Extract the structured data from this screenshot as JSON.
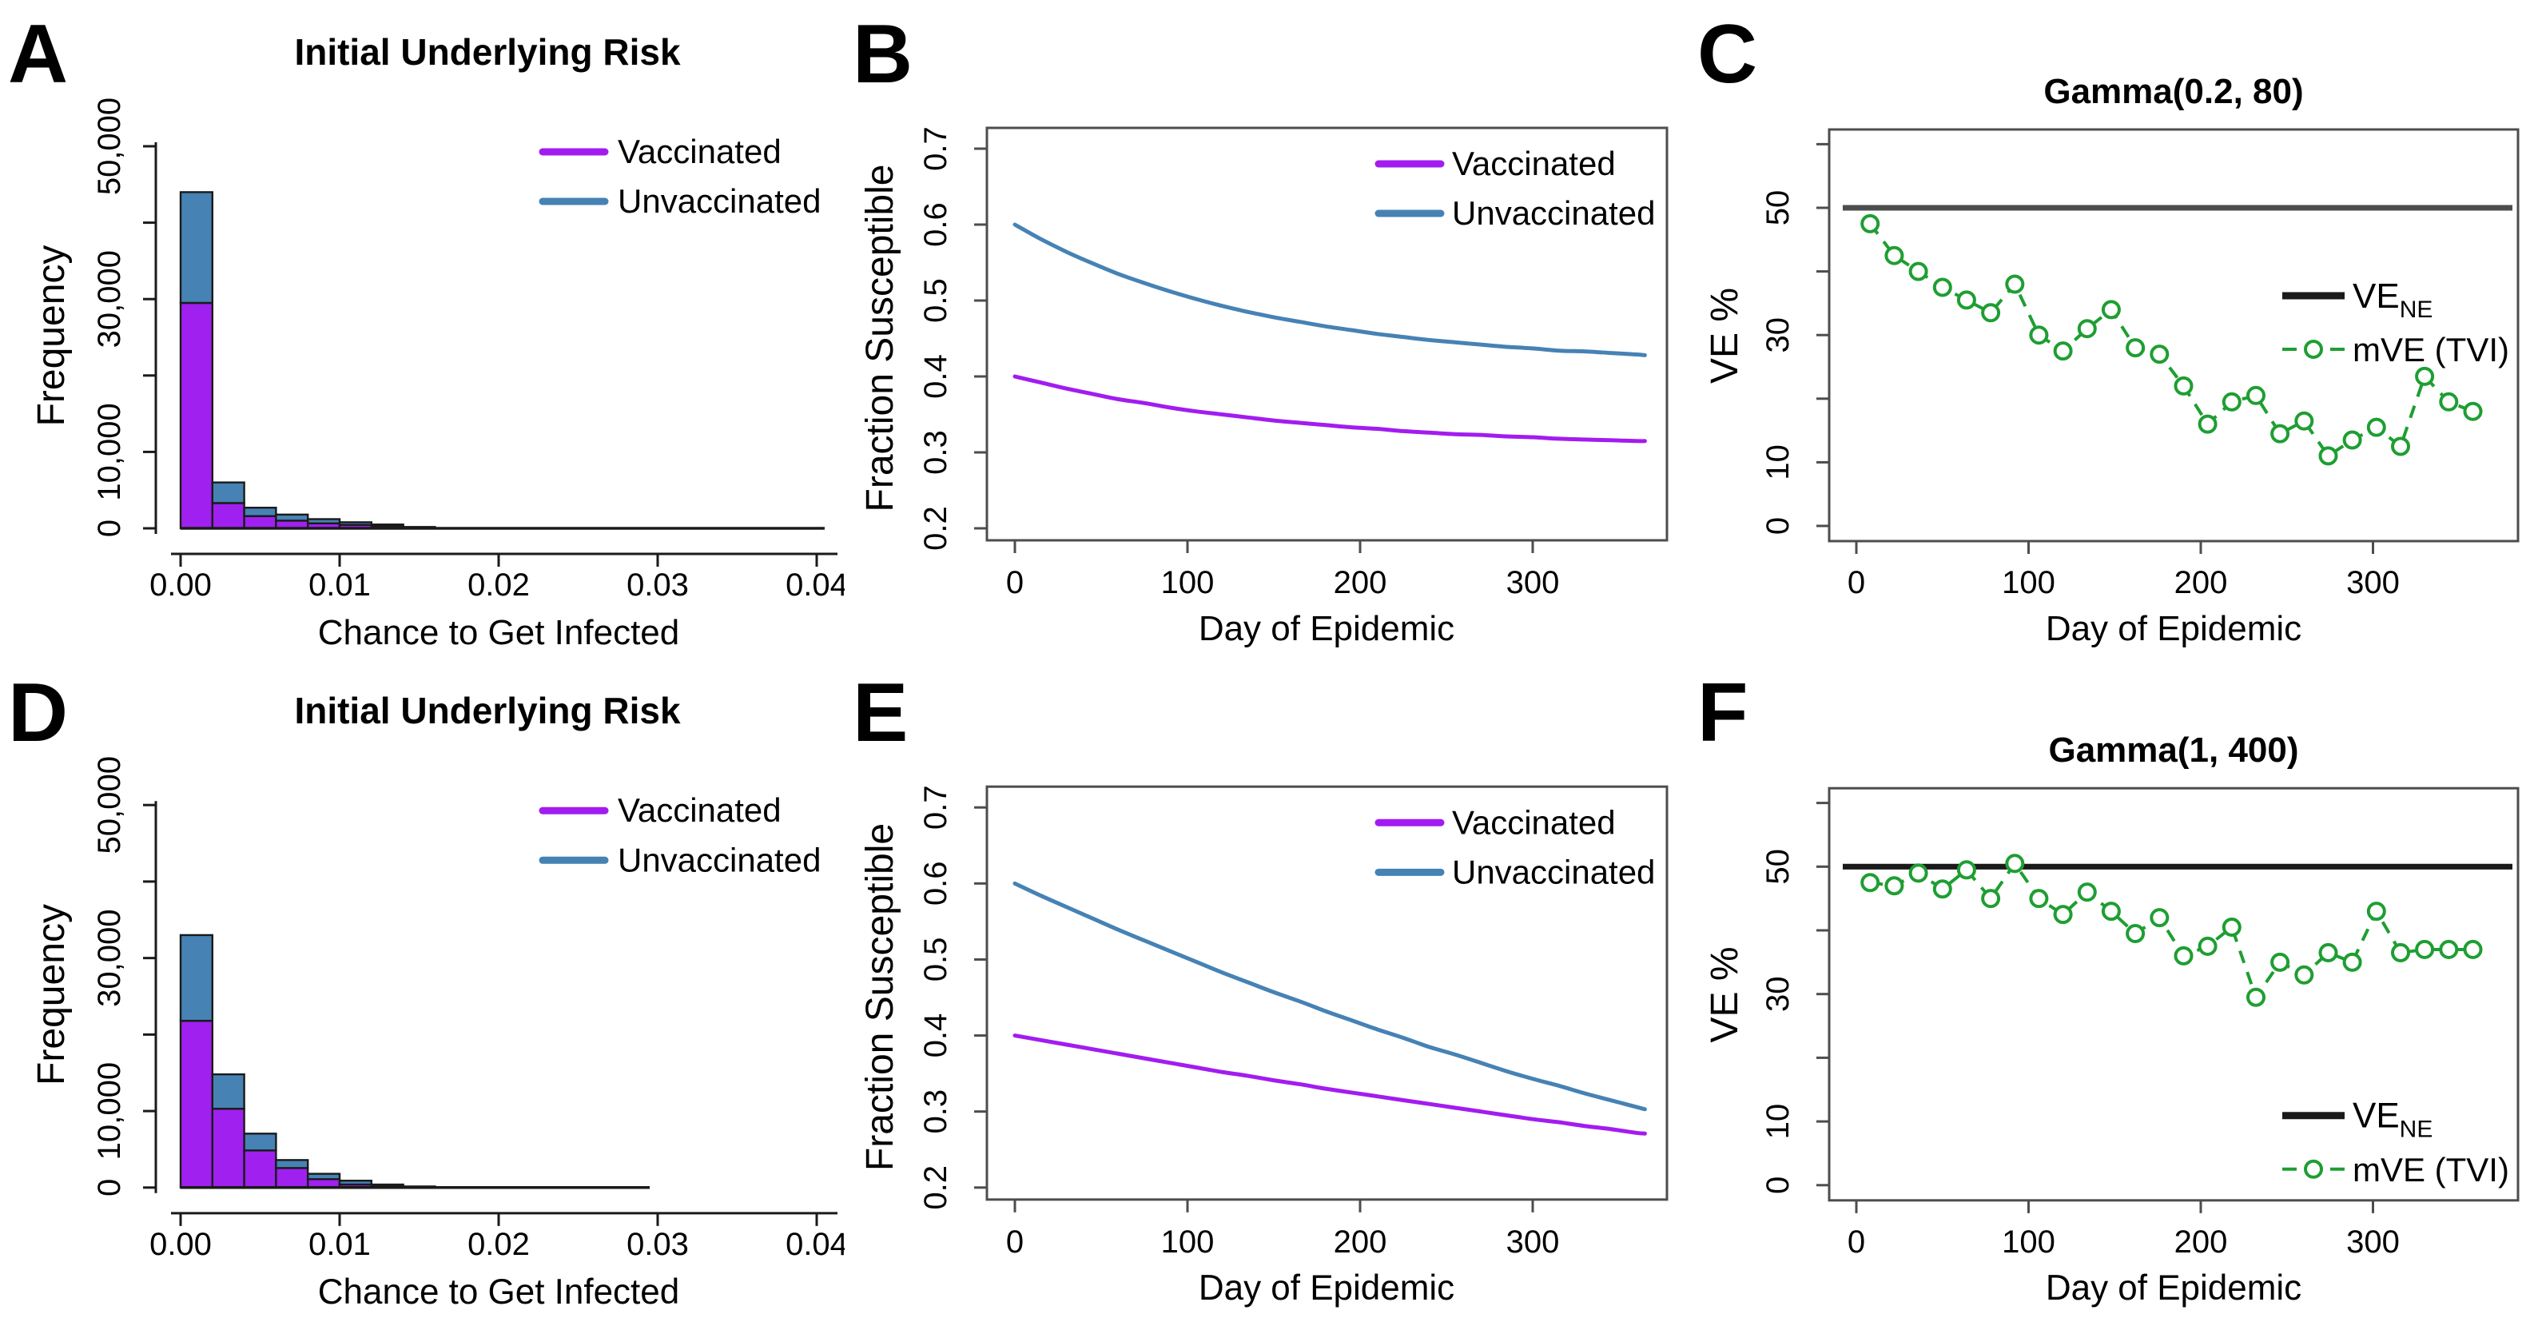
{
  "figure_caption": "Six-panel simulation figure of vaccine effectiveness under heterogeneous risk",
  "colors": {
    "vaccinated_line": "#A21CF0",
    "vaccinated_fill": "#A020F0",
    "unvaccinated": "#4682B4",
    "mve_green": "#1E9E32",
    "ve_ne_gray": "#4d4d4d",
    "ve_ne_black": "#1a1a1a"
  },
  "chart_data": [
    {
      "panel": "A",
      "letter": "A",
      "type": "hist",
      "title": "Initial Underlying Risk",
      "xlabel": "Chance to Get Infected",
      "ylabel": "Frequency",
      "xlim": [
        0,
        0.04
      ],
      "ylim": [
        0,
        55000
      ],
      "bin_start": 0,
      "bin_width": 0.002,
      "baseline_end": 0.0405,
      "xtick_values": [
        0,
        0.01,
        0.02,
        0.03,
        0.04
      ],
      "xtick_labels": [
        "0.00",
        "0.01",
        "0.02",
        "0.03",
        "0.04"
      ],
      "ytick_values": [
        0,
        10000,
        20000,
        30000,
        40000,
        50000
      ],
      "ytick_labels": [
        "0",
        "10,000",
        "",
        "30,000",
        "",
        "50,000"
      ],
      "series": [
        {
          "name": "Vaccinated",
          "color": "#A21CF0",
          "fill": "#A020F0",
          "values": [
            29500,
            3300,
            1600,
            1000,
            650,
            450,
            300,
            180,
            120,
            90,
            70,
            50,
            40,
            30,
            25,
            20,
            15,
            12,
            10,
            8
          ]
        },
        {
          "name": "Unvaccinated",
          "color": "#4682B4",
          "fill": "#4682B4",
          "values": [
            14500,
            2700,
            1100,
            800,
            550,
            350,
            200,
            120,
            80,
            60,
            45,
            35,
            28,
            22,
            18,
            14,
            11,
            9,
            7,
            6
          ]
        }
      ],
      "legend_position": "top-right",
      "stacking_note": "unvaccinated segment drawn stacked on top of vaccinated"
    },
    {
      "panel": "B",
      "letter": "B",
      "type": "line",
      "title": "",
      "xlabel": "Day of Epidemic",
      "ylabel": "Fraction Susceptible",
      "xlim": [
        0,
        365
      ],
      "ylim": [
        0.2,
        0.7
      ],
      "xtick_values": [
        0,
        100,
        200,
        300
      ],
      "xtick_labels": [
        "0",
        "100",
        "200",
        "300"
      ],
      "ytick_values": [
        0.2,
        0.3,
        0.4,
        0.5,
        0.6,
        0.7
      ],
      "ytick_labels": [
        "0.2",
        "0.3",
        "0.4",
        "0.5",
        "0.6",
        "0.7"
      ],
      "days": [
        0,
        15,
        30,
        45,
        60,
        75,
        90,
        105,
        120,
        135,
        150,
        165,
        180,
        195,
        210,
        225,
        240,
        255,
        270,
        285,
        300,
        315,
        330,
        345,
        360,
        365
      ],
      "series": [
        {
          "name": "Vaccinated",
          "color": "#A21CF0",
          "values": [
            0.4,
            0.392,
            0.384,
            0.377,
            0.37,
            0.365,
            0.359,
            0.354,
            0.35,
            0.346,
            0.342,
            0.339,
            0.336,
            0.333,
            0.331,
            0.328,
            0.326,
            0.324,
            0.323,
            0.321,
            0.32,
            0.318,
            0.317,
            0.316,
            0.315,
            0.315
          ]
        },
        {
          "name": "Unvaccinated",
          "color": "#4682B4",
          "values": [
            0.6,
            0.581,
            0.564,
            0.549,
            0.535,
            0.523,
            0.512,
            0.502,
            0.493,
            0.485,
            0.478,
            0.472,
            0.466,
            0.461,
            0.456,
            0.452,
            0.448,
            0.445,
            0.442,
            0.439,
            0.437,
            0.434,
            0.433,
            0.431,
            0.429,
            0.428
          ]
        }
      ],
      "legend_position": "top-right"
    },
    {
      "panel": "C",
      "letter": "C",
      "type": "ve",
      "title": "Gamma(0.2, 80)",
      "xlabel": "Day of Epidemic",
      "ylabel": "VE %",
      "xlim": [
        0,
        365
      ],
      "ylim": [
        0,
        60
      ],
      "xtick_values": [
        0,
        100,
        200,
        300
      ],
      "xtick_labels": [
        "0",
        "100",
        "200",
        "300"
      ],
      "ytick_values": [
        0,
        10,
        20,
        30,
        40,
        50,
        60
      ],
      "ytick_labels": [
        "0",
        "10",
        "",
        "30",
        "",
        "50",
        ""
      ],
      "ve_ne": {
        "label": "VE",
        "sub": "NE",
        "value": 50,
        "color": "#4d4d4d"
      },
      "mve": {
        "label": "mVE (TVI)",
        "color": "#1E9E32",
        "days": [
          8,
          22,
          36,
          50,
          64,
          78,
          92,
          106,
          120,
          134,
          148,
          162,
          176,
          190,
          204,
          218,
          232,
          246,
          260,
          274,
          288,
          302,
          316,
          330,
          344,
          358
        ],
        "values": [
          47.5,
          42.5,
          40,
          37.5,
          35.5,
          33.5,
          38,
          30,
          27.5,
          31,
          34,
          28,
          27,
          22,
          16,
          19.5,
          20.5,
          14.5,
          16.5,
          11,
          13.5,
          15.5,
          12.5,
          23.5,
          19.5,
          18
        ]
      },
      "legend_position": "middle-right"
    },
    {
      "panel": "D",
      "letter": "D",
      "type": "hist",
      "title": "Initial Underlying Risk",
      "xlabel": "Chance to Get Infected",
      "ylabel": "Frequency",
      "xlim": [
        0,
        0.04
      ],
      "ylim": [
        0,
        55000
      ],
      "bin_start": 0,
      "bin_width": 0.002,
      "baseline_end": 0.0295,
      "xtick_values": [
        0,
        0.01,
        0.02,
        0.03,
        0.04
      ],
      "xtick_labels": [
        "0.00",
        "0.01",
        "0.02",
        "0.03",
        "0.04"
      ],
      "ytick_values": [
        0,
        10000,
        20000,
        30000,
        40000,
        50000
      ],
      "ytick_labels": [
        "0",
        "10,000",
        "",
        "30,000",
        "",
        "50,000"
      ],
      "series": [
        {
          "name": "Vaccinated",
          "color": "#A21CF0",
          "fill": "#A020F0",
          "values": [
            21800,
            10300,
            4850,
            2550,
            1100,
            400,
            250,
            150,
            90,
            60,
            40,
            25,
            15,
            10,
            8
          ]
        },
        {
          "name": "Unvaccinated",
          "color": "#4682B4",
          "fill": "#4682B4",
          "values": [
            11200,
            4500,
            2200,
            1050,
            700,
            500,
            150,
            90,
            60,
            40,
            25,
            15,
            10,
            8,
            6
          ]
        }
      ],
      "legend_position": "top-right",
      "stacking_note": "unvaccinated segment drawn stacked on top of vaccinated"
    },
    {
      "panel": "E",
      "letter": "E",
      "type": "line",
      "title": "",
      "xlabel": "Day of Epidemic",
      "ylabel": "Fraction Susceptible",
      "xlim": [
        0,
        365
      ],
      "ylim": [
        0.2,
        0.7
      ],
      "xtick_values": [
        0,
        100,
        200,
        300
      ],
      "xtick_labels": [
        "0",
        "100",
        "200",
        "300"
      ],
      "ytick_values": [
        0.2,
        0.3,
        0.4,
        0.5,
        0.6,
        0.7
      ],
      "ytick_labels": [
        "0.2",
        "0.3",
        "0.4",
        "0.5",
        "0.6",
        "0.7"
      ],
      "days": [
        0,
        15,
        30,
        45,
        60,
        75,
        90,
        105,
        120,
        135,
        150,
        165,
        180,
        195,
        210,
        225,
        240,
        255,
        270,
        285,
        300,
        315,
        330,
        345,
        360,
        365
      ],
      "series": [
        {
          "name": "Vaccinated",
          "color": "#A21CF0",
          "values": [
            0.4,
            0.394,
            0.388,
            0.382,
            0.376,
            0.37,
            0.364,
            0.358,
            0.352,
            0.347,
            0.341,
            0.336,
            0.33,
            0.325,
            0.32,
            0.315,
            0.31,
            0.305,
            0.3,
            0.295,
            0.29,
            0.286,
            0.281,
            0.277,
            0.272,
            0.271
          ]
        },
        {
          "name": "Unvaccinated",
          "color": "#4682B4",
          "values": [
            0.6,
            0.584,
            0.569,
            0.554,
            0.539,
            0.525,
            0.511,
            0.497,
            0.483,
            0.47,
            0.457,
            0.445,
            0.432,
            0.42,
            0.408,
            0.397,
            0.385,
            0.375,
            0.364,
            0.353,
            0.343,
            0.334,
            0.324,
            0.315,
            0.306,
            0.303
          ]
        }
      ],
      "legend_position": "top-right"
    },
    {
      "panel": "F",
      "letter": "F",
      "type": "ve",
      "title": "Gamma(1, 400)",
      "xlabel": "Day of Epidemic",
      "ylabel": "VE %",
      "xlim": [
        0,
        365
      ],
      "ylim": [
        0,
        60
      ],
      "xtick_values": [
        0,
        100,
        200,
        300
      ],
      "xtick_labels": [
        "0",
        "100",
        "200",
        "300"
      ],
      "ytick_values": [
        0,
        10,
        20,
        30,
        40,
        50,
        60
      ],
      "ytick_labels": [
        "0",
        "10",
        "",
        "30",
        "",
        "50",
        ""
      ],
      "ve_ne": {
        "label": "VE",
        "sub": "NE",
        "value": 50,
        "color": "#1a1a1a"
      },
      "mve": {
        "label": "mVE (TVI)",
        "color": "#1E9E32",
        "days": [
          8,
          22,
          36,
          50,
          64,
          78,
          92,
          106,
          120,
          134,
          148,
          162,
          176,
          190,
          204,
          218,
          232,
          246,
          260,
          274,
          288,
          302,
          316,
          330,
          344,
          358
        ],
        "values": [
          47.5,
          47,
          49,
          46.5,
          49.5,
          45,
          50.5,
          45,
          42.5,
          46,
          43,
          39.5,
          42,
          36,
          37.5,
          40.5,
          29.5,
          35,
          33,
          36.5,
          35,
          43,
          36.5,
          37,
          37,
          37
        ]
      },
      "legend_position": "bottom-right"
    }
  ]
}
